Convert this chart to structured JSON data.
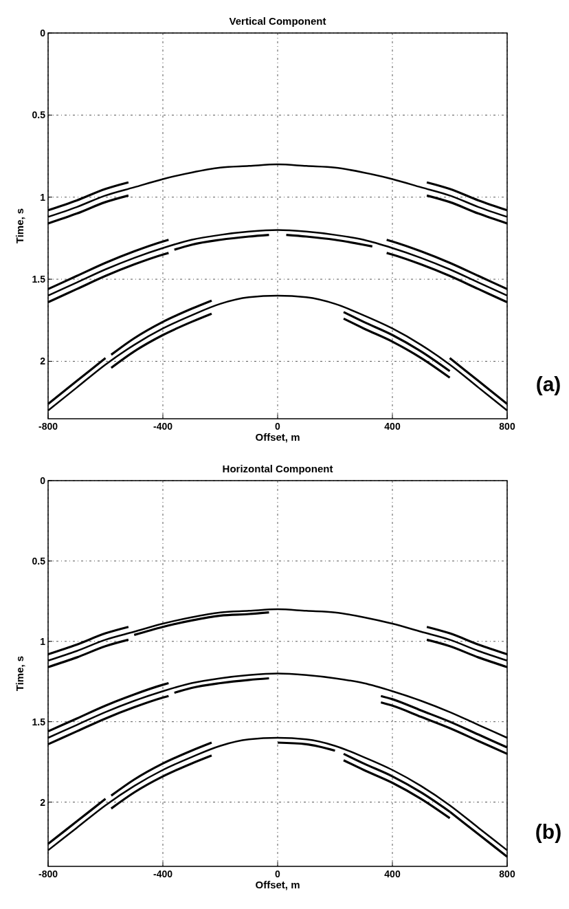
{
  "chart_data": [
    {
      "type": "line",
      "title": "Vertical Component",
      "xlabel": "Offset, m",
      "ylabel": "Time, s",
      "annotations": [
        "(a)"
      ],
      "x": [
        -800,
        -700,
        -600,
        -500,
        -400,
        -300,
        -200,
        -100,
        0,
        100,
        200,
        300,
        400,
        500,
        600,
        700,
        800
      ],
      "xlim": [
        -800,
        800
      ],
      "ylim": [
        2.35,
        0
      ],
      "xticks": [
        -800,
        -400,
        0,
        400,
        800
      ],
      "yticks": [
        0,
        0.5,
        1,
        1.5,
        2
      ],
      "grid": true,
      "line_style": "solid",
      "series": [
        {
          "color": "#000000",
          "values": [
            1.12,
            1.06,
            0.99,
            0.94,
            0.89,
            0.85,
            0.82,
            0.81,
            0.8,
            0.81,
            0.82,
            0.85,
            0.89,
            0.94,
            0.99,
            1.06,
            1.12
          ]
        },
        {
          "color": "#000000",
          "values": [
            1.6,
            1.52,
            1.44,
            1.37,
            1.31,
            1.26,
            1.23,
            1.21,
            1.2,
            1.21,
            1.23,
            1.26,
            1.31,
            1.37,
            1.44,
            1.52,
            1.6
          ]
        },
        {
          "color": "#000000",
          "values": [
            2.3,
            2.16,
            2.02,
            1.9,
            1.8,
            1.72,
            1.65,
            1.61,
            1.6,
            1.61,
            1.65,
            1.72,
            1.8,
            1.9,
            2.02,
            2.16,
            2.3
          ]
        },
        {
          "color": "#000000",
          "x": [
            -800,
            -700,
            -600,
            -520
          ],
          "values": [
            1.08,
            1.02,
            0.95,
            0.91
          ]
        },
        {
          "color": "#000000",
          "x": [
            -800,
            -700,
            -600,
            -520
          ],
          "values": [
            1.16,
            1.1,
            1.03,
            0.99
          ]
        },
        {
          "color": "#000000",
          "x": [
            520,
            600,
            700,
            800
          ],
          "values": [
            0.91,
            0.95,
            1.02,
            1.08
          ]
        },
        {
          "color": "#000000",
          "x": [
            520,
            600,
            700,
            800
          ],
          "values": [
            0.99,
            1.03,
            1.1,
            1.16
          ]
        },
        {
          "color": "#000000",
          "x": [
            -800,
            -700,
            -600,
            -500,
            -400,
            -380
          ],
          "values": [
            1.56,
            1.48,
            1.4,
            1.33,
            1.27,
            1.26
          ]
        },
        {
          "color": "#000000",
          "x": [
            -800,
            -700,
            -600,
            -500,
            -400,
            -380
          ],
          "values": [
            1.64,
            1.56,
            1.48,
            1.41,
            1.35,
            1.34
          ]
        },
        {
          "color": "#000000",
          "x": [
            380,
            400,
            500,
            600,
            700,
            800
          ],
          "values": [
            1.26,
            1.27,
            1.33,
            1.4,
            1.48,
            1.56
          ]
        },
        {
          "color": "#000000",
          "x": [
            380,
            400,
            500,
            600,
            700,
            800
          ],
          "values": [
            1.34,
            1.35,
            1.41,
            1.48,
            1.56,
            1.64
          ]
        },
        {
          "color": "#000000",
          "x": [
            -360,
            -300,
            -200,
            -100,
            -30
          ],
          "values": [
            1.32,
            1.29,
            1.26,
            1.24,
            1.23
          ]
        },
        {
          "color": "#000000",
          "x": [
            30,
            100,
            200,
            300,
            330
          ],
          "values": [
            1.23,
            1.24,
            1.26,
            1.29,
            1.3
          ]
        },
        {
          "color": "#000000",
          "x": [
            -580,
            -500,
            -400,
            -300,
            -230
          ],
          "values": [
            1.96,
            1.86,
            1.76,
            1.68,
            1.63
          ]
        },
        {
          "color": "#000000",
          "x": [
            -580,
            -500,
            -400,
            -300,
            -230
          ],
          "values": [
            2.04,
            1.94,
            1.84,
            1.76,
            1.71
          ]
        },
        {
          "color": "#000000",
          "x": [
            230,
            300,
            400,
            500,
            600
          ],
          "values": [
            1.7,
            1.76,
            1.84,
            1.94,
            2.06
          ]
        },
        {
          "color": "#000000",
          "x": [
            230,
            300,
            400,
            500,
            600
          ],
          "values": [
            1.74,
            1.8,
            1.88,
            1.98,
            2.1
          ]
        },
        {
          "color": "#000000",
          "x": [
            -800,
            -700,
            -600
          ],
          "values": [
            2.26,
            2.12,
            1.98
          ]
        },
        {
          "color": "#000000",
          "x": [
            600,
            700,
            800
          ],
          "values": [
            1.98,
            2.12,
            2.26
          ]
        }
      ]
    },
    {
      "type": "line",
      "title": "Horizontal Component",
      "xlabel": "Offset, m",
      "ylabel": "Time, s",
      "annotations": [
        "(b)"
      ],
      "x": [
        -800,
        -700,
        -600,
        -500,
        -400,
        -300,
        -200,
        -100,
        0,
        100,
        200,
        300,
        400,
        500,
        600,
        700,
        800
      ],
      "xlim": [
        -800,
        800
      ],
      "ylim": [
        2.4,
        0
      ],
      "xticks": [
        -800,
        -400,
        0,
        400,
        800
      ],
      "yticks": [
        0,
        0.5,
        1,
        1.5,
        2
      ],
      "grid": true,
      "line_style": "solid",
      "series": [
        {
          "color": "#000000",
          "values": [
            1.12,
            1.06,
            0.99,
            0.94,
            0.89,
            0.85,
            0.82,
            0.81,
            0.8,
            0.81,
            0.82,
            0.85,
            0.89,
            0.94,
            0.99,
            1.06,
            1.12
          ]
        },
        {
          "color": "#000000",
          "values": [
            1.6,
            1.52,
            1.44,
            1.37,
            1.31,
            1.26,
            1.23,
            1.21,
            1.2,
            1.21,
            1.23,
            1.26,
            1.31,
            1.37,
            1.44,
            1.52,
            1.6
          ]
        },
        {
          "color": "#000000",
          "values": [
            2.3,
            2.16,
            2.02,
            1.9,
            1.8,
            1.72,
            1.65,
            1.61,
            1.6,
            1.61,
            1.65,
            1.72,
            1.8,
            1.9,
            2.02,
            2.16,
            2.3
          ]
        },
        {
          "color": "#000000",
          "x": [
            -800,
            -700,
            -600,
            -520
          ],
          "values": [
            1.08,
            1.02,
            0.95,
            0.91
          ]
        },
        {
          "color": "#000000",
          "x": [
            -800,
            -700,
            -600,
            -520
          ],
          "values": [
            1.16,
            1.1,
            1.03,
            0.99
          ]
        },
        {
          "color": "#000000",
          "x": [
            -500,
            -400,
            -300,
            -200,
            -100,
            -30
          ],
          "values": [
            0.96,
            0.91,
            0.87,
            0.84,
            0.83,
            0.82
          ]
        },
        {
          "color": "#000000",
          "x": [
            520,
            600,
            700,
            800
          ],
          "values": [
            0.91,
            0.95,
            1.02,
            1.08
          ]
        },
        {
          "color": "#000000",
          "x": [
            520,
            600,
            700,
            800
          ],
          "values": [
            0.99,
            1.03,
            1.1,
            1.16
          ]
        },
        {
          "color": "#000000",
          "x": [
            -800,
            -700,
            -600,
            -500,
            -400,
            -380
          ],
          "values": [
            1.56,
            1.48,
            1.4,
            1.33,
            1.27,
            1.26
          ]
        },
        {
          "color": "#000000",
          "x": [
            -800,
            -700,
            -600,
            -500,
            -400,
            -380
          ],
          "values": [
            1.64,
            1.56,
            1.48,
            1.41,
            1.35,
            1.34
          ]
        },
        {
          "color": "#000000",
          "x": [
            360,
            400,
            500,
            600,
            700,
            800
          ],
          "values": [
            1.34,
            1.36,
            1.43,
            1.5,
            1.58,
            1.66
          ]
        },
        {
          "color": "#000000",
          "x": [
            360,
            400,
            500,
            600,
            700,
            800
          ],
          "values": [
            1.38,
            1.4,
            1.47,
            1.54,
            1.62,
            1.7
          ]
        },
        {
          "color": "#000000",
          "x": [
            -360,
            -300,
            -200,
            -100,
            -30
          ],
          "values": [
            1.32,
            1.29,
            1.26,
            1.24,
            1.23
          ]
        },
        {
          "color": "#000000",
          "x": [
            -580,
            -500,
            -400,
            -300,
            -230
          ],
          "values": [
            1.96,
            1.86,
            1.76,
            1.68,
            1.63
          ]
        },
        {
          "color": "#000000",
          "x": [
            -580,
            -500,
            -400,
            -300,
            -230
          ],
          "values": [
            2.04,
            1.94,
            1.84,
            1.76,
            1.71
          ]
        },
        {
          "color": "#000000",
          "x": [
            0,
            100,
            200
          ],
          "values": [
            1.63,
            1.64,
            1.68
          ]
        },
        {
          "color": "#000000",
          "x": [
            230,
            300,
            400,
            500,
            600
          ],
          "values": [
            1.7,
            1.76,
            1.84,
            1.94,
            2.06
          ]
        },
        {
          "color": "#000000",
          "x": [
            230,
            300,
            400,
            500,
            600
          ],
          "values": [
            1.74,
            1.8,
            1.88,
            1.98,
            2.1
          ]
        },
        {
          "color": "#000000",
          "x": [
            -800,
            -700,
            -600
          ],
          "values": [
            2.26,
            2.12,
            1.98
          ]
        },
        {
          "color": "#000000",
          "x": [
            600,
            700,
            800
          ],
          "values": [
            2.06,
            2.2,
            2.34
          ]
        }
      ]
    }
  ]
}
